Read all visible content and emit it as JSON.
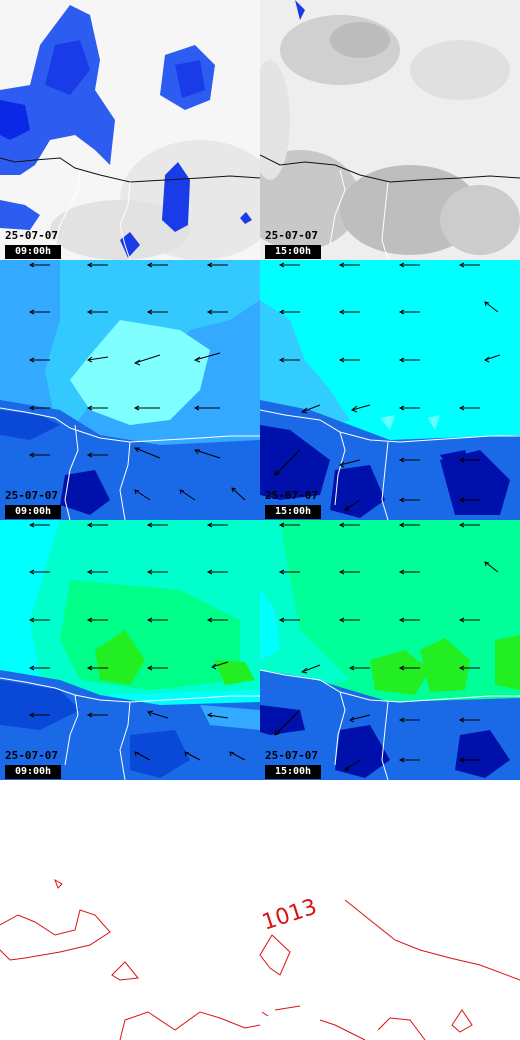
{
  "panels": [
    {
      "id": "p1",
      "date": "25-07-07",
      "time": "09:00h"
    },
    {
      "id": "p2",
      "date": "25-07-07",
      "time": "15:00h"
    },
    {
      "id": "p3",
      "date": "25-07-07",
      "time": "09:00h"
    },
    {
      "id": "p4",
      "date": "25-07-07",
      "time": "15:00h"
    },
    {
      "id": "p5",
      "date": "25-07-07",
      "time": "09:00h"
    },
    {
      "id": "p6",
      "date": "25-07-07",
      "time": "15:00h"
    }
  ],
  "isobar": {
    "label": "1013",
    "color": "#dd1111"
  },
  "colors": {
    "precip_dark": "#0a28e6",
    "precip_mid": "#2d5cf0",
    "precip_light": "#4a82f5",
    "cloud_bg": "#f0f0f0",
    "cloud_grey": "#c8c8c8",
    "wind_cyan": "#00ffff",
    "wind_sky": "#33aaff",
    "wind_blue": "#1a6ae8",
    "wind_navy": "#0010aa",
    "hum_green": "#00ff88",
    "hum_lime": "#22ee22",
    "coast": "#ffffff"
  },
  "wind_arrows": {
    "direction": "from east, pointing west"
  }
}
